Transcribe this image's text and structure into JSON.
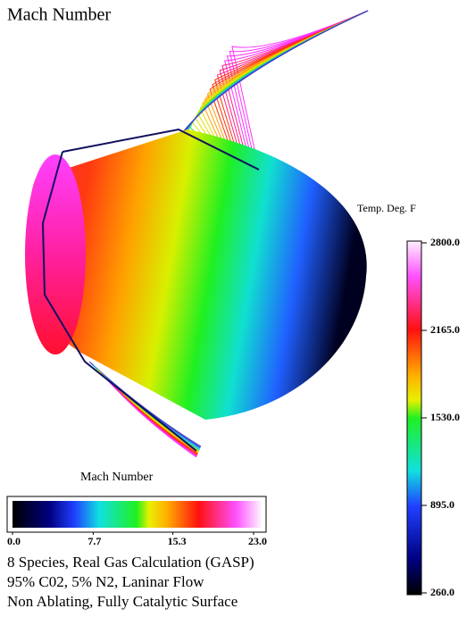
{
  "title": "Mach Number",
  "temperature_legend": {
    "label": "Temp. Deg. F",
    "range": [
      260,
      2800
    ],
    "ticks": [
      {
        "value": 2800,
        "label": "2800.0"
      },
      {
        "value": 2165,
        "label": "2165.0"
      },
      {
        "value": 1530,
        "label": "1530.0"
      },
      {
        "value": 895,
        "label": "895.0"
      },
      {
        "value": 260,
        "label": "260.0"
      }
    ]
  },
  "mach_legend": {
    "label": "Mach Number",
    "range": [
      0,
      23
    ],
    "ticks": [
      {
        "value": 0,
        "label": "0.0"
      },
      {
        "value": 7.7,
        "label": "7.7"
      },
      {
        "value": 15.3,
        "label": "15.3"
      },
      {
        "value": 23,
        "label": "23.0"
      }
    ]
  },
  "notes": [
    "8 Species, Real Gas Calculation (GASP)",
    "95% C02, 5% N2, Laninar Flow",
    "Non Ablating, Fully Catalytic Surface"
  ]
}
